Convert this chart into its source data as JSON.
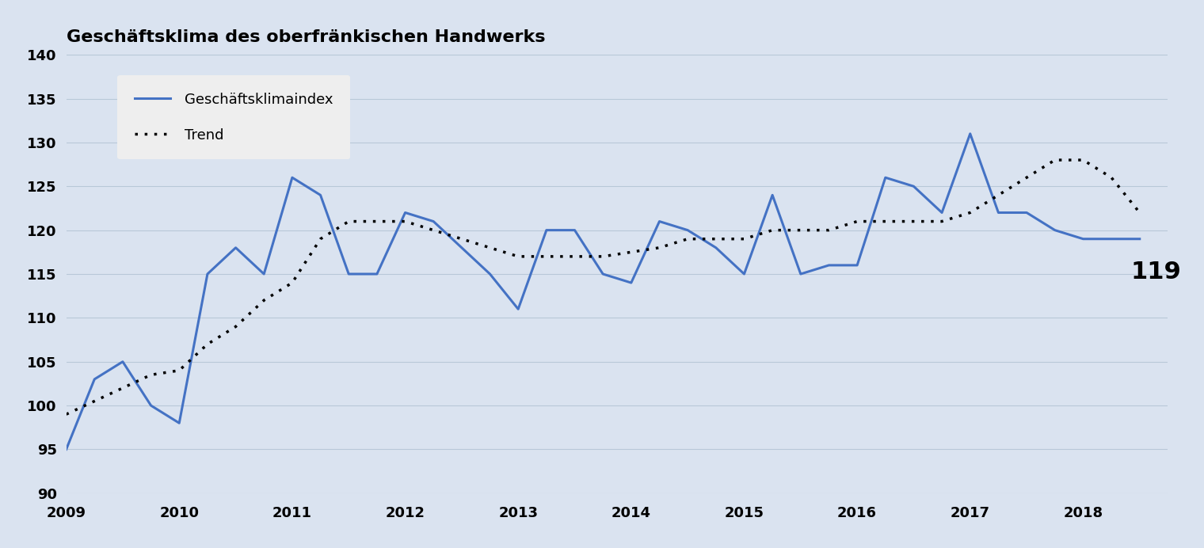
{
  "title": "Geschäftsklima des oberfränkischen Handwerks",
  "ylim": [
    90,
    140
  ],
  "yticks": [
    90,
    95,
    100,
    105,
    110,
    115,
    120,
    125,
    130,
    135,
    140
  ],
  "background_color": "#dae3f0",
  "plot_bg_color": "#dae3f0",
  "line_color": "#4472c4",
  "trend_color": "#000000",
  "line_label": "Geschäftsklimaindex",
  "trend_label": "Trend",
  "annotation_value": "119",
  "title_fontsize": 16,
  "legend_fontsize": 13,
  "annotation_fontsize": 22,
  "x_values": [
    2009.0,
    2009.25,
    2009.5,
    2009.75,
    2010.0,
    2010.25,
    2010.5,
    2010.75,
    2011.0,
    2011.25,
    2011.5,
    2011.75,
    2012.0,
    2012.25,
    2012.5,
    2012.75,
    2013.0,
    2013.25,
    2013.5,
    2013.75,
    2014.0,
    2014.25,
    2014.5,
    2014.75,
    2015.0,
    2015.25,
    2015.5,
    2015.75,
    2016.0,
    2016.25,
    2016.5,
    2016.75,
    2017.0,
    2017.25,
    2017.5,
    2017.75,
    2018.0,
    2018.25,
    2018.5
  ],
  "y_values": [
    95,
    103,
    105,
    100,
    98,
    115,
    118,
    115,
    126,
    124,
    115,
    115,
    122,
    121,
    118,
    115,
    111,
    120,
    120,
    115,
    114,
    121,
    120,
    118,
    115,
    124,
    115,
    116,
    116,
    126,
    125,
    122,
    131,
    122,
    122,
    120,
    119,
    119,
    119
  ],
  "trend_y": [
    99,
    100.5,
    102,
    103.5,
    104,
    107,
    109,
    112,
    114,
    119,
    121,
    121,
    121,
    120,
    119,
    118,
    117,
    117,
    117,
    117,
    117.5,
    118,
    119,
    119,
    119,
    120,
    120,
    120,
    121,
    121,
    121,
    121,
    122,
    124,
    126,
    128,
    128,
    126,
    122
  ],
  "xticks": [
    2009,
    2010,
    2011,
    2012,
    2013,
    2014,
    2015,
    2016,
    2017,
    2018
  ],
  "xtick_labels": [
    "2009",
    "2010",
    "2011",
    "2012",
    "2013",
    "2014",
    "2015",
    "2016",
    "2017",
    "2018"
  ],
  "xlim_left": 2009.0,
  "xlim_right": 2018.75,
  "legend_bg_color": "#eeeeee",
  "grid_color": "#b8c8d8",
  "grid_linewidth": 0.8
}
